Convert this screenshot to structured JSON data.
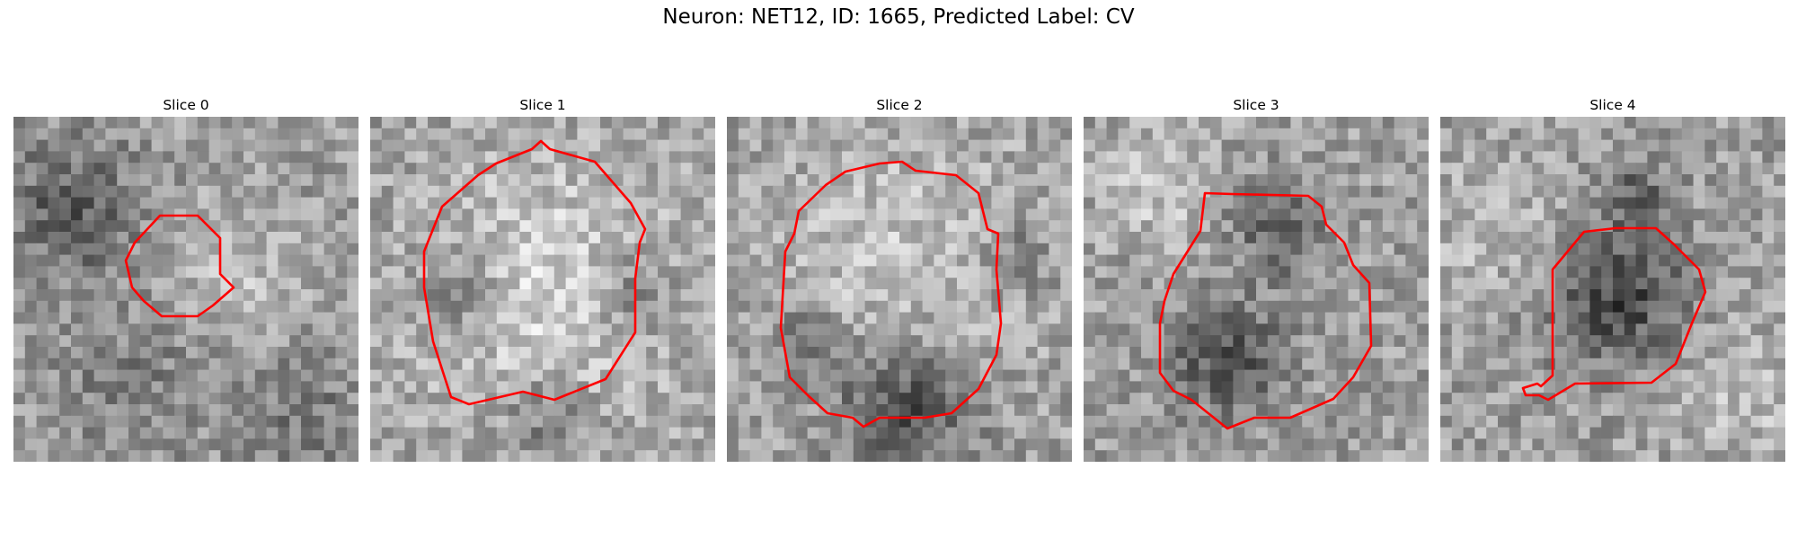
{
  "title": "Neuron: NET12, ID: 1665, Predicted Label: CV",
  "panels": [
    {
      "label": "Slice 0"
    },
    {
      "label": "Slice 1"
    },
    {
      "label": "Slice 2"
    },
    {
      "label": "Slice 3"
    },
    {
      "label": "Slice 4"
    }
  ],
  "colors": {
    "contour": "#ff0000",
    "background": "#ffffff"
  }
}
